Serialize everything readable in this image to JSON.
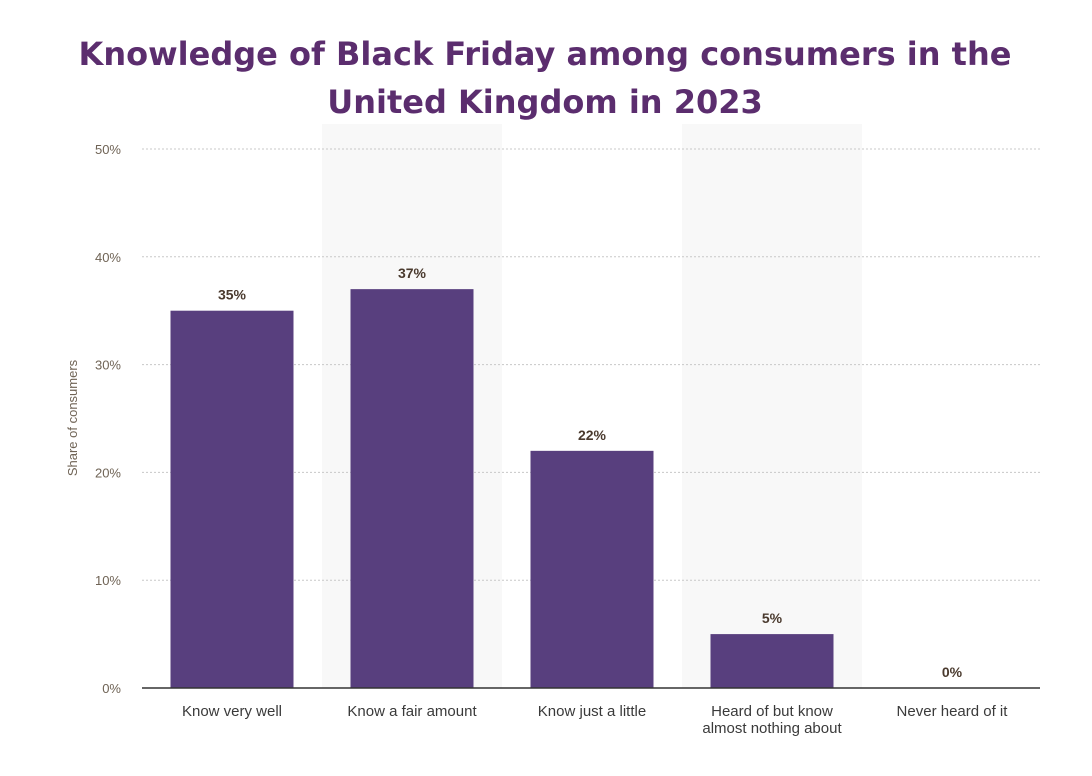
{
  "chart_data": {
    "type": "bar",
    "title": "Knowledge of Black Friday among consumers in the United Kingdom in 2023",
    "xlabel": "",
    "ylabel": "Share of consumers",
    "categories": [
      [
        "Know very well"
      ],
      [
        "Know a fair amount"
      ],
      [
        "Know just a little"
      ],
      [
        "Heard of but know",
        "almost nothing about"
      ],
      [
        "Never heard of it"
      ]
    ],
    "values": [
      35,
      37,
      22,
      5,
      0
    ],
    "value_labels": [
      "35%",
      "37%",
      "22%",
      "5%",
      "0%"
    ],
    "ylim": [
      0,
      50
    ],
    "yticks": [
      0,
      10,
      20,
      30,
      40,
      50
    ],
    "ytick_labels": [
      "0%",
      "10%",
      "20%",
      "30%",
      "40%",
      "50%"
    ],
    "grid": true,
    "colors": {
      "bar": "#583f7e",
      "title": "#5b2d6e",
      "band": "#f8f8f8",
      "grid": "#c8c8c8",
      "axis": "#333333"
    }
  }
}
